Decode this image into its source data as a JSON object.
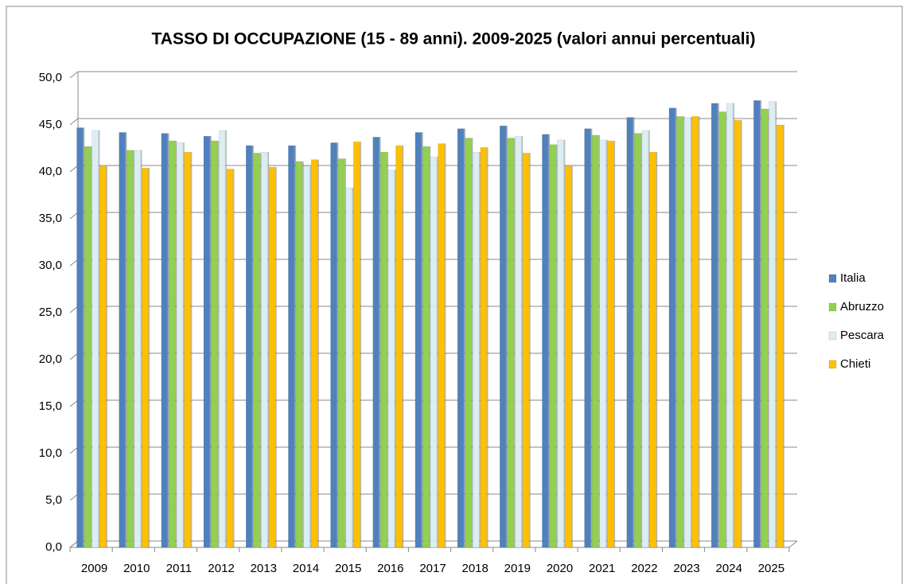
{
  "chart_data": {
    "type": "bar",
    "title": "TASSO DI OCCUPAZIONE (15 - 89 anni).  2009-2025 (valori annui percentuali)",
    "categories": [
      "2009",
      "2010",
      "2011",
      "2012",
      "2013",
      "2014",
      "2015",
      "2016",
      "2017",
      "2018",
      "2019",
      "2020",
      "2021",
      "2022",
      "2023",
      "2024",
      "2025"
    ],
    "series": [
      {
        "name": "Italia",
        "color": "#4f81bd",
        "values": [
          44.7,
          44.2,
          44.1,
          43.8,
          42.8,
          42.8,
          43.1,
          43.7,
          44.2,
          44.6,
          44.9,
          44.0,
          44.6,
          45.8,
          46.8,
          47.3,
          47.6
        ]
      },
      {
        "name": "Abruzzo",
        "color": "#92d050",
        "values": [
          42.7,
          42.3,
          43.3,
          43.3,
          42.0,
          41.1,
          41.4,
          42.1,
          42.7,
          43.6,
          43.6,
          42.9,
          43.9,
          44.1,
          45.9,
          46.4,
          46.7
        ]
      },
      {
        "name": "Pescara",
        "color": "#dbeef3",
        "values": [
          44.4,
          42.3,
          43.1,
          44.4,
          42.1,
          40.6,
          38.3,
          40.2,
          41.6,
          42.1,
          43.8,
          43.4,
          43.4,
          44.4,
          45.8,
          47.3,
          47.5
        ]
      },
      {
        "name": "Chieti",
        "color": "#ffc000",
        "values": [
          40.6,
          40.4,
          42.1,
          40.3,
          40.5,
          41.3,
          43.2,
          42.8,
          43.0,
          42.6,
          42.0,
          40.6,
          43.3,
          42.1,
          45.9,
          45.5,
          45.0
        ]
      }
    ],
    "ylim": [
      0,
      50
    ],
    "yticks": [
      {
        "value": 0,
        "label": "0,0"
      },
      {
        "value": 5,
        "label": "5,0"
      },
      {
        "value": 10,
        "label": "10,0"
      },
      {
        "value": 15,
        "label": "15,0"
      },
      {
        "value": 20,
        "label": "20,0"
      },
      {
        "value": 25,
        "label": "25,0"
      },
      {
        "value": 30,
        "label": "30,0"
      },
      {
        "value": 35,
        "label": "35,0"
      },
      {
        "value": 40,
        "label": "40,0"
      },
      {
        "value": 45,
        "label": "45,0"
      },
      {
        "value": 50,
        "label": "50,0"
      }
    ],
    "grid": true,
    "legend": "right"
  }
}
